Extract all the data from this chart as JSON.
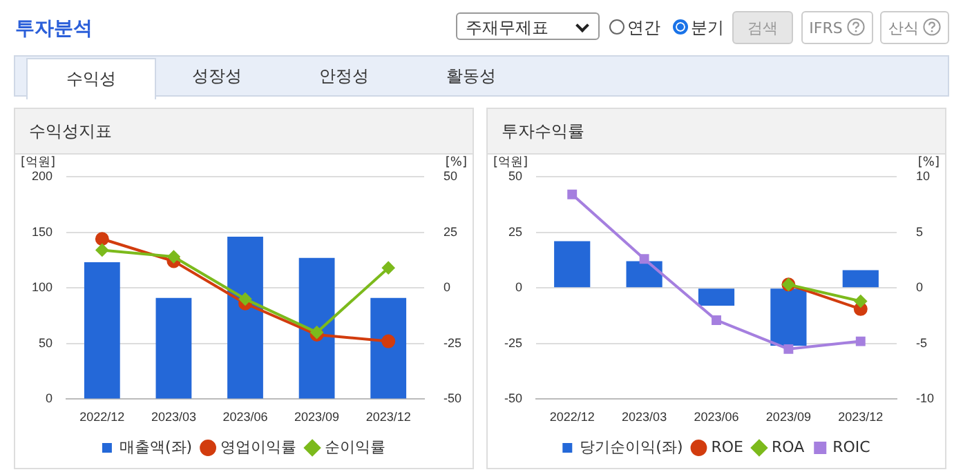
{
  "chart_data": [
    {
      "type": "bar",
      "title": "수익성지표",
      "ylabel": "[억원]",
      "y2label": "[%]",
      "annotations": [
        "투자분석",
        "주재무제표",
        "연간",
        "분기",
        "검색",
        "IFRS",
        "산식",
        "수익성",
        "성장성",
        "안정성",
        "활동성"
      ],
      "categories": [
        "2022/12",
        "2023/03",
        "2023/06",
        "2023/09",
        "2023/12"
      ],
      "series": [
        {
          "name": "매출액(좌)",
          "color": "#2468d8",
          "values": [
            123,
            91,
            146,
            127,
            91
          ]
        },
        {
          "name": "영업이익률",
          "type": "line",
          "axis": "y2",
          "marker": "circle",
          "color": "#d23c0e",
          "values": [
            22,
            12,
            -7,
            -21,
            -24
          ]
        },
        {
          "name": "순이익률",
          "type": "line",
          "axis": "y2",
          "marker": "diamond",
          "color": "#7cba1c",
          "values": [
            17,
            14,
            -5,
            -20,
            9
          ]
        }
      ],
      "ylim": [
        0,
        200
      ],
      "yticks": [
        0,
        50,
        100,
        150,
        200
      ],
      "y2lim": [
        -50,
        50
      ],
      "y2ticks": [
        -50,
        -25,
        0,
        25,
        50
      ],
      "grid": "y",
      "legend": "bottom"
    },
    {
      "type": "bar",
      "title": "투자수익률",
      "ylabel": "[억원]",
      "y2label": "[%]",
      "categories": [
        "2022/12",
        "2023/03",
        "2023/06",
        "2023/09",
        "2023/12"
      ],
      "series": [
        {
          "name": "당기순이익(좌)",
          "color": "#2468d8",
          "values": [
            21,
            12,
            -8,
            -26,
            8
          ]
        },
        {
          "name": "ROE",
          "type": "line",
          "axis": "y2",
          "marker": "circle",
          "color": "#d23c0e",
          "values": [
            null,
            null,
            null,
            0.3,
            -1.9
          ]
        },
        {
          "name": "ROA",
          "type": "line",
          "axis": "y2",
          "marker": "diamond",
          "color": "#7cba1c",
          "values": [
            null,
            null,
            null,
            0.3,
            -1.2
          ]
        },
        {
          "name": "ROIC",
          "type": "line",
          "axis": "y2",
          "marker": "square",
          "color": "#a57fdf",
          "values": [
            8.4,
            2.6,
            -2.9,
            -5.5,
            -4.8
          ]
        }
      ],
      "ylim": [
        -50,
        50
      ],
      "yticks": [
        -50,
        -25,
        0,
        25,
        50
      ],
      "y2lim": [
        -10,
        10
      ],
      "y2ticks": [
        -10,
        -5,
        0,
        5,
        10
      ],
      "grid": "y",
      "legend": "bottom"
    }
  ]
}
